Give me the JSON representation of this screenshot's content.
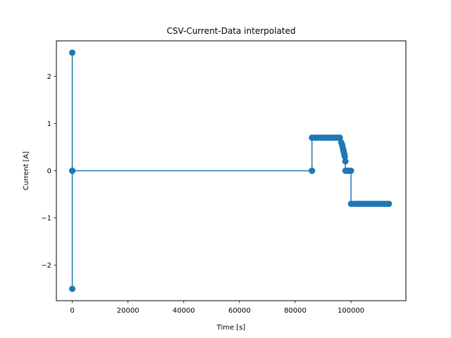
{
  "chart_data": {
    "type": "line",
    "title": "CSV-Current-Data interpolated",
    "xlabel": "Time [s]",
    "ylabel": "Current [A]",
    "xlim": [
      -5700,
      119700
    ],
    "ylim": [
      -2.75,
      2.75
    ],
    "xticks": [
      0,
      20000,
      40000,
      60000,
      80000,
      100000
    ],
    "xtick_labels": [
      "0",
      "20000",
      "40000",
      "60000",
      "80000",
      "100000"
    ],
    "yticks": [
      -2,
      -1,
      0,
      1,
      2
    ],
    "ytick_labels": [
      "−2",
      "−1",
      "0",
      "1",
      "2"
    ],
    "grid": false,
    "color": "#1f77b4",
    "series": [
      {
        "marker": "circle",
        "x": [
          0,
          0,
          0,
          0,
          0,
          86000,
          86000,
          86000,
          87000,
          88000,
          89000,
          90000,
          91000,
          92000,
          93000,
          94000,
          95000,
          96000,
          96500,
          96800,
          97000,
          97200,
          97400,
          97600,
          97800,
          98000,
          98000,
          98500,
          99000,
          99500,
          100000,
          100000,
          101000,
          102000,
          103000,
          104000,
          105000,
          106000,
          107000,
          108000,
          109000,
          110000,
          111000,
          112000,
          113000,
          113600
        ],
        "y": [
          0,
          2.5,
          -2.5,
          0,
          0,
          0,
          0,
          0.7,
          0.7,
          0.7,
          0.7,
          0.7,
          0.7,
          0.7,
          0.7,
          0.7,
          0.7,
          0.7,
          0.6,
          0.55,
          0.5,
          0.45,
          0.4,
          0.35,
          0.3,
          0.2,
          0,
          0,
          0,
          0,
          0,
          -0.7,
          -0.7,
          -0.7,
          -0.7,
          -0.7,
          -0.7,
          -0.7,
          -0.7,
          -0.7,
          -0.7,
          -0.7,
          -0.7,
          -0.7,
          -0.7,
          -0.7
        ]
      }
    ]
  }
}
